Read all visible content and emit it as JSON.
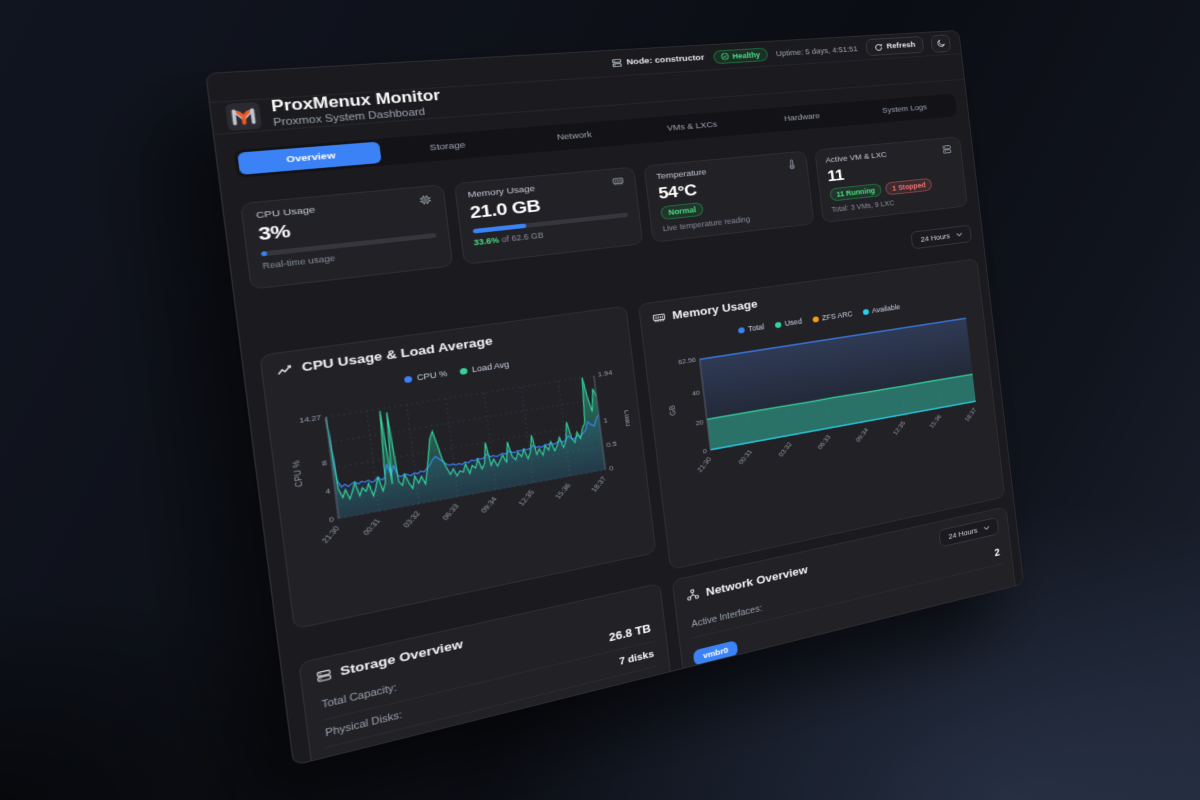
{
  "topbar": {
    "node_label": "Node: constructor",
    "health_badge": "Healthy",
    "uptime": "Uptime: 5 days, 4:51:51",
    "refresh_label": "Refresh"
  },
  "brand": {
    "title": "ProxMenux Monitor",
    "subtitle": "Proxmox System Dashboard"
  },
  "tabs": {
    "items": [
      "Overview",
      "Storage",
      "Network",
      "VMs & LXCs",
      "Hardware",
      "System Logs"
    ],
    "active": "Overview"
  },
  "stats": {
    "cpu": {
      "title": "CPU Usage",
      "value": "3%",
      "percent": 3,
      "caption": "Real-time usage"
    },
    "memory": {
      "title": "Memory Usage",
      "value": "21.0 GB",
      "percent": 33.6,
      "caption_highlight": "33.6%",
      "caption_rest": " of 62.6 GB"
    },
    "temperature": {
      "title": "Temperature",
      "value": "54°C",
      "badge": "Normal",
      "caption": "Live temperature reading"
    },
    "vms": {
      "title": "Active VM & LXC",
      "value": "11",
      "running": "11 Running",
      "stopped": "1 Stopped",
      "caption": "Total: 3 VMs, 9 LXC"
    }
  },
  "range_selector": "24 Hours",
  "storage": {
    "title": "Storage Overview",
    "rows": [
      {
        "label": "Total Capacity:",
        "value": "26.8 TB"
      },
      {
        "label": "Physical Disks:",
        "value": "7 disks"
      }
    ]
  },
  "network": {
    "title": "Network Overview",
    "range": "24 Hours",
    "label": "Active Interfaces:",
    "count": "2",
    "interface": "vmbr0"
  },
  "chart_data": [
    {
      "type": "line",
      "title": "CPU Usage & Load Average",
      "x_labels": [
        "21:30",
        "00:31",
        "03:32",
        "06:33",
        "09:34",
        "12:35",
        "15:36",
        "18:37"
      ],
      "left_axis": {
        "title": "CPU %",
        "ticks": [
          0,
          4,
          8,
          14.27
        ],
        "max": 14.27
      },
      "right_axis": {
        "title": "Load",
        "ticks": [
          0,
          0.5,
          1,
          1.94
        ],
        "max": 1.94
      },
      "series": [
        {
          "name": "CPU %",
          "color": "#3b82f6",
          "axis": "left",
          "values": [
            14.27,
            5.2,
            4.3,
            4.6,
            4.2,
            4.5,
            4.7,
            4.3,
            4.6,
            4.4,
            4.6,
            4.2,
            4.4,
            4.8,
            4.3,
            4.5,
            6.4,
            4.6,
            6.1,
            4.5,
            4.3,
            4.6,
            4.4,
            4.2,
            4.5,
            4.3,
            4.6,
            4.4,
            4.8,
            5.2,
            5.9,
            6.3,
            5.9,
            5.4,
            5.0,
            4.7,
            4.8,
            4.6,
            4.7,
            4.5,
            4.8,
            4.6,
            4.9,
            4.7,
            5.0,
            4.8,
            4.9,
            5.4,
            4.9,
            5.0,
            4.8,
            4.9,
            5.1,
            4.9,
            5.3,
            5.0,
            4.9,
            5.1,
            5.0,
            5.2,
            5.0,
            5.1,
            5.5,
            5.1,
            5.2,
            5.0,
            5.3,
            5.2,
            5.4,
            5.1,
            5.3,
            5.5,
            5.2,
            5.4,
            6.0,
            5.5,
            5.4,
            5.8,
            5.6,
            6.0,
            6.4,
            7.6,
            7.1,
            6.8,
            7.8,
            8.4
          ]
        },
        {
          "name": "Load Avg",
          "color": "#34d399",
          "axis": "right",
          "values": [
            1.9,
            0.55,
            0.38,
            0.52,
            0.33,
            0.47,
            0.62,
            0.36,
            0.5,
            0.42,
            0.56,
            0.31,
            0.46,
            0.66,
            0.37,
            0.52,
            1.9,
            0.47,
            1.85,
            0.5,
            0.41,
            0.61,
            0.44,
            0.32,
            0.55,
            0.4,
            0.52,
            0.36,
            0.62,
            0.92,
            1.22,
            1.35,
            1.08,
            0.78,
            0.6,
            0.46,
            0.56,
            0.41,
            0.5,
            0.46,
            0.61,
            0.41,
            0.56,
            0.5,
            0.66,
            0.46,
            0.56,
            0.96,
            0.5,
            0.61,
            0.46,
            0.56,
            0.66,
            0.5,
            0.9,
            0.6,
            0.52,
            0.66,
            0.56,
            0.7,
            0.5,
            0.62,
            0.95,
            0.55,
            0.66,
            0.52,
            0.7,
            0.6,
            0.76,
            0.56,
            0.66,
            0.82,
            0.6,
            0.72,
            1.1,
            0.76,
            0.66,
            0.86,
            0.72,
            0.92,
            1.02,
            1.94,
            1.5,
            1.22,
            1.68,
            1.52
          ]
        }
      ]
    },
    {
      "type": "area",
      "title": "Memory Usage",
      "x_labels": [
        "21:30",
        "00:31",
        "03:32",
        "06:33",
        "09:34",
        "12:35",
        "15:36",
        "18:37"
      ],
      "left_axis": {
        "title": "GB",
        "ticks": [
          0,
          20,
          40,
          62.56
        ],
        "max": 62.56
      },
      "series": [
        {
          "name": "Total",
          "color": "#3b82f6",
          "values": [
            62.56,
            62.56,
            62.56,
            62.56,
            62.56,
            62.56,
            62.56,
            62.56,
            62.56,
            62.56,
            62.56,
            62.56
          ]
        },
        {
          "name": "Used",
          "color": "#34d399",
          "values": [
            21.5,
            21.4,
            21.5,
            21.3,
            21.2,
            21.3,
            21.1,
            21.0,
            20.9,
            21.0,
            20.8,
            20.7
          ]
        },
        {
          "name": "ZFS ARC",
          "color": "#f59e0b",
          "values": [
            0.4,
            0.4,
            0.4,
            0.4,
            0.4,
            0.4,
            0.4,
            0.4,
            0.4,
            0.4,
            0.4,
            0.4
          ]
        },
        {
          "name": "Available",
          "color": "#22d3ee",
          "values": [
            0.5,
            0.5,
            0.5,
            0.5,
            0.5,
            0.5,
            0.5,
            0.5,
            0.5,
            0.5,
            0.5,
            0.5
          ]
        }
      ]
    }
  ]
}
